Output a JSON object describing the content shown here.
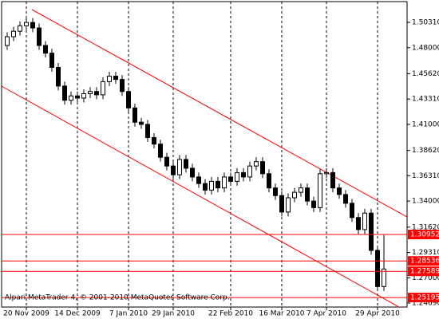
{
  "chart_data": {
    "type": "candlestick",
    "footer": "Alpari MetaTrader 4, © 2001-2010 MetaQuotes Software Corp.",
    "categories": [
      null,
      null,
      null,
      "20 Nov 2009",
      null,
      null,
      null,
      null,
      null,
      null,
      null,
      "14 Dec 2009",
      null,
      null,
      null,
      null,
      null,
      null,
      null,
      "7 Jan 2010",
      null,
      null,
      null,
      null,
      null,
      null,
      "29 Jan 2010",
      null,
      null,
      null,
      null,
      null,
      null,
      null,
      null,
      "22 Feb 2010",
      null,
      null,
      null,
      null,
      null,
      null,
      null,
      "16 Mar 2010",
      null,
      null,
      null,
      null,
      null,
      null,
      "7 Apr 2010",
      null,
      null,
      null,
      null,
      null,
      null,
      null,
      "29 Apr 2010",
      null
    ],
    "open": [
      1.482,
      1.49,
      1.495,
      1.5,
      1.503,
      1.498,
      1.482,
      1.475,
      1.462,
      1.445,
      1.432,
      1.436,
      1.434,
      1.438,
      1.44,
      1.437,
      1.449,
      1.454,
      1.451,
      1.44,
      1.425,
      1.412,
      1.41,
      1.398,
      1.392,
      1.38,
      1.372,
      1.364,
      1.378,
      1.37,
      1.362,
      1.356,
      1.35,
      1.358,
      1.352,
      1.362,
      1.358,
      1.366,
      1.362,
      1.372,
      1.376,
      1.365,
      1.352,
      1.345,
      1.33,
      1.343,
      1.348,
      1.352,
      1.34,
      1.334,
      1.365,
      1.366,
      1.352,
      1.346,
      1.338,
      1.325,
      1.314,
      1.329,
      1.295,
      1.262
    ],
    "high": [
      1.494,
      1.499,
      1.504,
      1.508,
      1.507,
      1.502,
      1.486,
      1.479,
      1.466,
      1.449,
      1.44,
      1.44,
      1.442,
      1.444,
      1.444,
      1.453,
      1.458,
      1.458,
      1.455,
      1.444,
      1.429,
      1.416,
      1.414,
      1.402,
      1.396,
      1.384,
      1.376,
      1.382,
      1.382,
      1.374,
      1.366,
      1.36,
      1.362,
      1.362,
      1.366,
      1.366,
      1.37,
      1.37,
      1.376,
      1.38,
      1.38,
      1.369,
      1.356,
      1.349,
      1.347,
      1.352,
      1.356,
      1.356,
      1.344,
      1.369,
      1.37,
      1.37,
      1.356,
      1.35,
      1.342,
      1.329,
      1.333,
      1.333,
      1.299,
      1.309
    ],
    "low": [
      1.478,
      1.486,
      1.491,
      1.496,
      1.494,
      1.478,
      1.471,
      1.458,
      1.441,
      1.428,
      1.428,
      1.43,
      1.43,
      1.434,
      1.433,
      1.433,
      1.445,
      1.447,
      1.436,
      1.421,
      1.408,
      1.406,
      1.394,
      1.388,
      1.376,
      1.368,
      1.36,
      1.36,
      1.366,
      1.358,
      1.352,
      1.346,
      1.346,
      1.348,
      1.348,
      1.354,
      1.354,
      1.358,
      1.358,
      1.368,
      1.361,
      1.348,
      1.341,
      1.326,
      1.326,
      1.339,
      1.344,
      1.336,
      1.33,
      1.33,
      1.361,
      1.348,
      1.342,
      1.334,
      1.321,
      1.31,
      1.31,
      1.291,
      1.258,
      1.258
    ],
    "close": [
      1.49,
      1.495,
      1.5,
      1.503,
      1.498,
      1.482,
      1.475,
      1.462,
      1.445,
      1.432,
      1.436,
      1.434,
      1.438,
      1.44,
      1.437,
      1.449,
      1.454,
      1.451,
      1.44,
      1.425,
      1.412,
      1.41,
      1.398,
      1.392,
      1.38,
      1.372,
      1.364,
      1.378,
      1.37,
      1.362,
      1.356,
      1.35,
      1.358,
      1.352,
      1.362,
      1.358,
      1.366,
      1.362,
      1.372,
      1.376,
      1.365,
      1.352,
      1.345,
      1.33,
      1.343,
      1.348,
      1.352,
      1.34,
      1.334,
      1.365,
      1.366,
      1.352,
      1.346,
      1.338,
      1.325,
      1.314,
      1.329,
      1.295,
      1.262,
      1.278
    ],
    "up_color": "#ffffff",
    "down_color": "#000000",
    "level_color": "#ff0000",
    "levels": [
      1.30952,
      1.28536,
      1.27589,
      1.25195
    ],
    "ylim": [
      1.2433,
      1.5235
    ],
    "yticks": [
      {
        "value": 1.5031,
        "label": "1.50310"
      },
      {
        "value": 1.48,
        "label": "1.48000"
      },
      {
        "value": 1.4562,
        "label": "1.45620"
      },
      {
        "value": 1.4331,
        "label": "1.43310"
      },
      {
        "value": 1.41,
        "label": "1.41000"
      },
      {
        "value": 1.3862,
        "label": "1.38620"
      },
      {
        "value": 1.3631,
        "label": "1.36310"
      },
      {
        "value": 1.34,
        "label": "1.34000"
      },
      {
        "value": 1.3162,
        "label": "1.31620"
      },
      {
        "value": 1.2931,
        "label": "1.29310"
      },
      {
        "value": 1.27,
        "label": "1.27000"
      },
      {
        "value": 1.2469,
        "label": "1.24690"
      }
    ],
    "grid": true
  }
}
